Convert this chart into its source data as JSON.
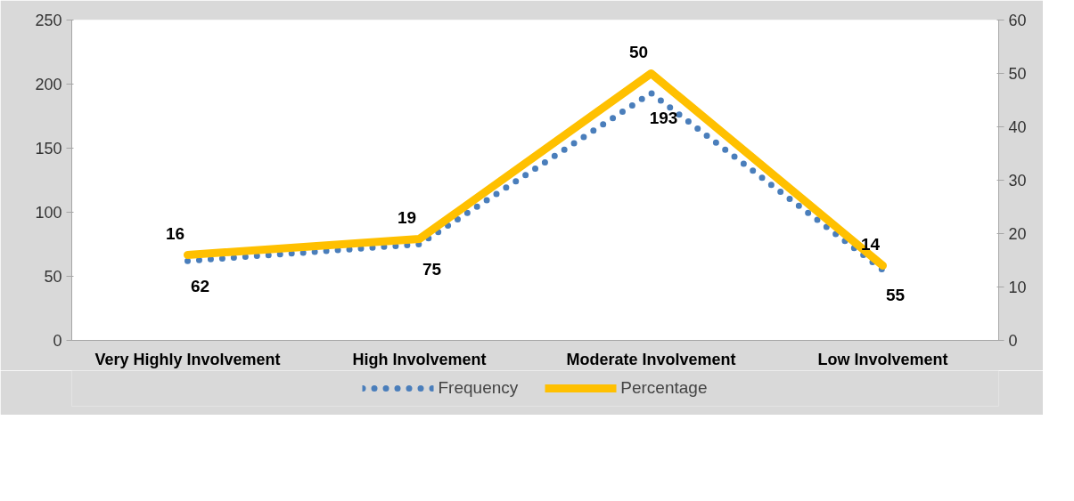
{
  "chart_data": {
    "type": "line",
    "categories": [
      "Very Highly Involvement",
      "High Involvement",
      "Moderate Involvement",
      "Low Involvement"
    ],
    "series": [
      {
        "name": "Frequency",
        "color": "#4a7ebb",
        "values": [
          62,
          75,
          193,
          55
        ],
        "line_style": "dotted"
      },
      {
        "name": "Percentage",
        "color": "#ffc000",
        "values": [
          16,
          19,
          50,
          14
        ],
        "axis": "y2",
        "line_style": "solid"
      }
    ],
    "ylim": [
      0,
      250
    ],
    "yticks": [
      0,
      50,
      100,
      150,
      200,
      250
    ],
    "y2lim": [
      0,
      60
    ],
    "y2ticks": [
      0,
      10,
      20,
      30,
      40,
      50,
      60
    ],
    "legend": "bottom",
    "grid": false,
    "data_labels": true
  }
}
